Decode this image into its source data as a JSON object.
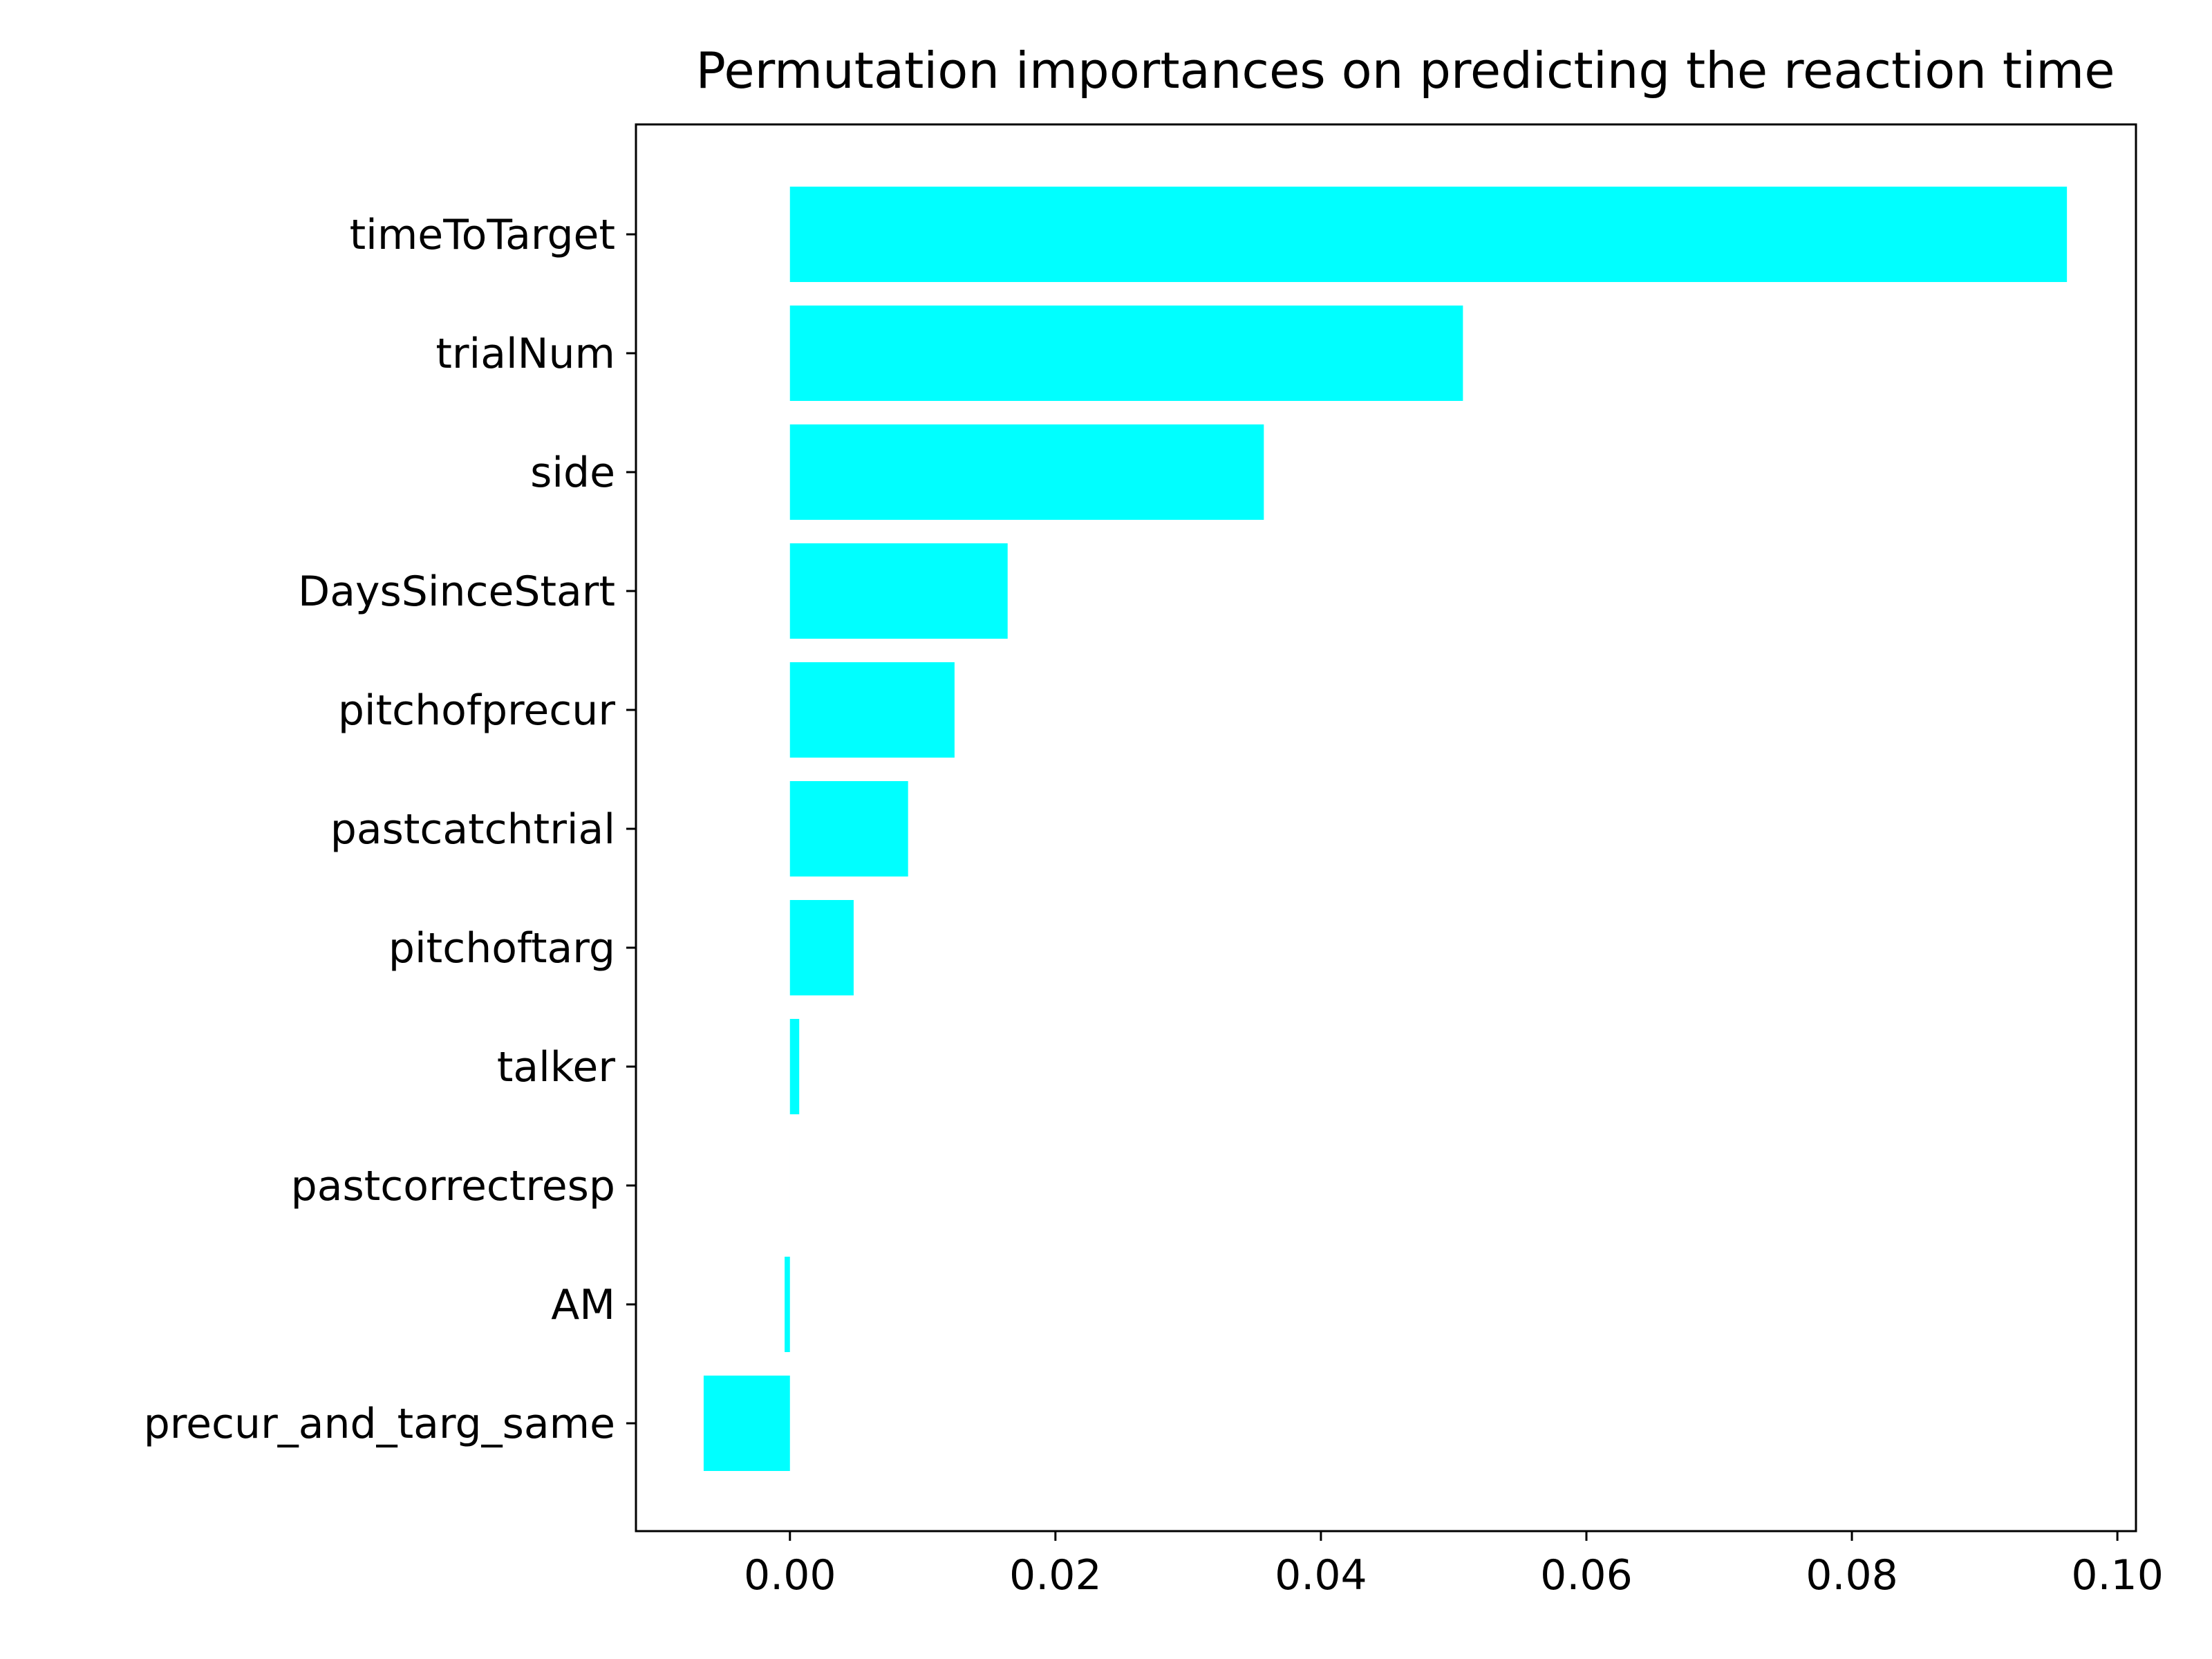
{
  "chart_data": {
    "type": "bar",
    "orientation": "horizontal",
    "title": "Permutation importances on predicting the reaction time",
    "xlabel": "",
    "ylabel": "",
    "categories": [
      "timeToTarget",
      "trialNum",
      "side",
      "DaysSinceStart",
      "pitchofprecur",
      "pastcatchtrial",
      "pitchoftarg",
      "talker",
      "pastcorrectresp",
      "AM",
      "precur_and_targ_same"
    ],
    "values": [
      0.0962,
      0.0507,
      0.0357,
      0.0164,
      0.0124,
      0.0089,
      0.0048,
      0.0007,
      0.0,
      -0.0004,
      -0.0065
    ],
    "xlim": [
      -0.0116,
      0.1014
    ],
    "xticks": [
      0.0,
      0.02,
      0.04,
      0.06,
      0.08,
      0.1
    ],
    "xtick_labels": [
      "0.00",
      "0.02",
      "0.04",
      "0.06",
      "0.08",
      "0.10"
    ],
    "grid": false,
    "legend": "none",
    "bar_color": "#00ffff",
    "axis_color": "#000000"
  }
}
